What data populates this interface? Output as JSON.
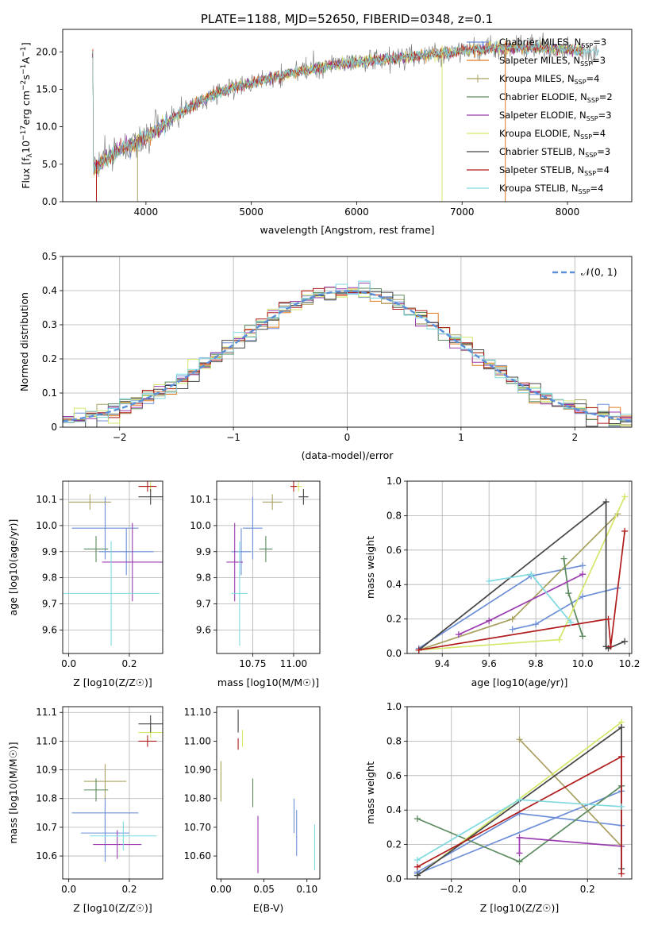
{
  "figure": {
    "title": "PLATE=1188, MJD=52650, FIBERID=0348, z=0.1"
  },
  "series": [
    {
      "label": "Chabrier MILES, N_SSP=3",
      "base": "Chabrier MILES, N",
      "sub": "SSP",
      "tail": "=3",
      "color": "#6c8fd8",
      "marker": "none"
    },
    {
      "label": "Salpeter MILES, N_SSP=3",
      "base": "Salpeter MILES, N",
      "sub": "SSP",
      "tail": "=3",
      "color": "#e07b1e",
      "marker": "none"
    },
    {
      "label": "Kroupa MILES, N_SSP=4",
      "base": "Kroupa MILES, N",
      "sub": "SSP",
      "tail": "=4",
      "color": "#a8a060",
      "marker": "plus"
    },
    {
      "label": "Chabrier ELODIE, N_SSP=2",
      "base": "Chabrier ELODIE, N",
      "sub": "SSP",
      "tail": "=2",
      "color": "#5a8a5e",
      "marker": "none"
    },
    {
      "label": "Salpeter ELODIE, N_SSP=3",
      "base": "Salpeter ELODIE, N",
      "sub": "SSP",
      "tail": "=3",
      "color": "#9b3bb0",
      "marker": "none"
    },
    {
      "label": "Kroupa ELODIE, N_SSP=4",
      "base": "Kroupa ELODIE, N",
      "sub": "SSP",
      "tail": "=4",
      "color": "#d5e66a",
      "marker": "none"
    },
    {
      "label": "Chabrier STELIB, N_SSP=3",
      "base": "Chabrier STELIB, N",
      "sub": "SSP",
      "tail": "=3",
      "color": "#444444",
      "marker": "none"
    },
    {
      "label": "Salpeter STELIB, N_SSP=4",
      "base": "Salpeter STELIB, N",
      "sub": "SSP",
      "tail": "=4",
      "color": "#b01c1c",
      "marker": "none"
    },
    {
      "label": "Kroupa STELIB, N_SSP=4",
      "base": "Kroupa STELIB, N",
      "sub": "SSP",
      "tail": "=4",
      "color": "#7fd9e0",
      "marker": "none"
    }
  ],
  "chart_data": [
    {
      "id": "spectrum",
      "type": "line",
      "xlabel": "wavelength [Angstrom, rest frame]",
      "ylabel": "Flux [f_λ 10^-17 erg cm^-2 s^-1 A^-1]",
      "xlim": [
        3210,
        8610
      ],
      "ylim": [
        0,
        23
      ],
      "xticks": [
        4000,
        5000,
        6000,
        7000,
        8000
      ],
      "yticks": [
        0,
        5,
        10,
        15,
        20
      ],
      "grid": false,
      "legend_position": "right",
      "observed_color": "#808080",
      "model_color": "#7fd9e0",
      "continuum": {
        "x": [
          3500,
          3600,
          3700,
          3800,
          3900,
          4000,
          4100,
          4200,
          4300,
          4400,
          4500,
          4600,
          4700,
          4800,
          5000,
          5200,
          5400,
          5600,
          5800,
          6000,
          6200,
          6400,
          6600,
          6800,
          7000,
          7200,
          7400,
          7600,
          7800,
          8000,
          8200,
          8300
        ],
        "y": [
          4.2,
          5.5,
          6.5,
          7.2,
          7.8,
          8.6,
          9.6,
          10.6,
          11.5,
          12.5,
          13.3,
          14.0,
          14.6,
          15.1,
          15.8,
          16.5,
          17.2,
          17.8,
          18.3,
          18.6,
          18.9,
          19.2,
          19.5,
          19.8,
          20.1,
          20.4,
          20.5,
          20.6,
          20.5,
          20.3,
          20.1,
          20.0
        ]
      },
      "spikes": [
        {
          "x": 3530,
          "y": 0
        },
        {
          "x": 3920,
          "y": 0
        },
        {
          "x": 6810,
          "y": 0
        },
        {
          "x": 7410,
          "y": 0
        }
      ]
    },
    {
      "id": "residuals",
      "type": "histogram",
      "xlabel": "(data-model)/error",
      "ylabel": "Normed distribution",
      "xlim": [
        -2.5,
        2.5
      ],
      "ylim": [
        0,
        0.5
      ],
      "xticks": [
        -2,
        -1,
        0,
        1,
        2
      ],
      "yticks": [
        0.0,
        0.1,
        0.2,
        0.3,
        0.4,
        0.5
      ],
      "grid": true,
      "reference_curve": {
        "label": "𝒩(0, 1)",
        "mean": 0,
        "sigma": 1,
        "color": "#5b8fd9",
        "style": "dashed"
      },
      "bin_width": 0.1,
      "bin_start": -2.5
    },
    {
      "id": "age_vs_Z",
      "type": "scatter",
      "xlabel": "Z [log10(Z/Z☉)]",
      "ylabel": "age [log10(age/yr)]",
      "xlim": [
        -0.02,
        0.31
      ],
      "ylim": [
        9.51,
        10.17
      ],
      "xticks": [
        0.0,
        0.2
      ],
      "yticks": [
        9.6,
        9.7,
        9.8,
        9.9,
        10.0,
        10.1
      ],
      "grid": true,
      "points": [
        {
          "series": 0,
          "x": 0.19,
          "y": 9.9,
          "xerr": 0.09,
          "yerr": 0.09
        },
        {
          "series": 1,
          "x": 0.12,
          "y": 9.99,
          "xerr": 0.11,
          "yerr": 0.12
        },
        {
          "series": 3,
          "x": 0.07,
          "y": 10.09,
          "xerr": 0.07,
          "yerr": 0.03
        },
        {
          "series": 4,
          "x": 0.09,
          "y": 9.91,
          "xerr": 0.04,
          "yerr": 0.05
        },
        {
          "series": 5,
          "x": 0.21,
          "y": 9.86,
          "xerr": 0.1,
          "yerr": 0.15
        },
        {
          "series": 6,
          "x": 0.27,
          "y": 10.15,
          "xerr": 0.02,
          "yerr": 0.02
        },
        {
          "series": 7,
          "x": 0.27,
          "y": 10.11,
          "xerr": 0.04,
          "yerr": 0.03
        },
        {
          "series": 8,
          "x": 0.26,
          "y": 10.15,
          "xerr": 0.03,
          "yerr": 0.02
        },
        {
          "series": 9,
          "x": 0.14,
          "y": 9.74,
          "xerr": 0.16,
          "yerr": 0.2
        }
      ]
    },
    {
      "id": "age_vs_mass",
      "type": "scatter",
      "xlabel": "mass [log10(M/M☉)]",
      "ylabel": "",
      "xlim": [
        10.53,
        11.16
      ],
      "ylim": [
        9.51,
        10.17
      ],
      "xticks": [
        10.75,
        11.0
      ],
      "yticks": [
        9.6,
        9.7,
        9.8,
        9.9,
        10.0,
        10.1
      ],
      "grid": true,
      "points": [
        {
          "series": 0,
          "x": 10.68,
          "y": 9.9,
          "xerr": 0.06,
          "yerr": 0.09
        },
        {
          "series": 1,
          "x": 10.75,
          "y": 9.99,
          "xerr": 0.06,
          "yerr": 0.12
        },
        {
          "series": 3,
          "x": 10.87,
          "y": 10.09,
          "xerr": 0.06,
          "yerr": 0.03
        },
        {
          "series": 4,
          "x": 10.83,
          "y": 9.91,
          "xerr": 0.04,
          "yerr": 0.05
        },
        {
          "series": 5,
          "x": 10.64,
          "y": 9.86,
          "xerr": 0.05,
          "yerr": 0.15
        },
        {
          "series": 6,
          "x": 11.03,
          "y": 10.15,
          "xerr": 0.02,
          "yerr": 0.02
        },
        {
          "series": 7,
          "x": 11.06,
          "y": 10.11,
          "xerr": 0.03,
          "yerr": 0.03
        },
        {
          "series": 8,
          "x": 11.0,
          "y": 10.15,
          "xerr": 0.02,
          "yerr": 0.02
        },
        {
          "series": 9,
          "x": 10.67,
          "y": 9.74,
          "xerr": 0.05,
          "yerr": 0.2
        }
      ]
    },
    {
      "id": "mass_weight_vs_age",
      "type": "line",
      "xlabel": "age [log10(age/yr)]",
      "ylabel": "mass weight",
      "xlim": [
        9.25,
        10.21
      ],
      "ylim": [
        0.0,
        1.0
      ],
      "xticks": [
        9.4,
        9.6,
        9.8,
        10.0,
        10.2
      ],
      "yticks": [
        0.0,
        0.2,
        0.4,
        0.6,
        0.8,
        1.0
      ],
      "grid": true,
      "lines": [
        {
          "series": 0,
          "x": [
            9.3,
            9.78,
            10.0
          ],
          "y": [
            0.03,
            0.45,
            0.51
          ]
        },
        {
          "series": 1,
          "x": [
            9.7,
            9.8,
            10.0,
            10.15
          ],
          "y": [
            0.14,
            0.17,
            0.33,
            0.38
          ]
        },
        {
          "series": 3,
          "x": [
            9.3,
            9.7,
            10.15
          ],
          "y": [
            0.02,
            0.2,
            0.81
          ]
        },
        {
          "series": 4,
          "x": [
            9.92,
            9.94,
            10.0
          ],
          "y": [
            0.55,
            0.35,
            0.1
          ]
        },
        {
          "series": 5,
          "x": [
            9.47,
            9.6,
            10.0
          ],
          "y": [
            0.11,
            0.19,
            0.46
          ]
        },
        {
          "series": 6,
          "x": [
            9.3,
            9.9,
            10.18
          ],
          "y": [
            0.02,
            0.08,
            0.91
          ]
        },
        {
          "series": 7,
          "x": [
            9.3,
            10.1,
            10.1,
            10.11,
            10.18
          ],
          "y": [
            0.02,
            0.88,
            0.04,
            0.03,
            0.07
          ]
        },
        {
          "series": 8,
          "x": [
            9.3,
            10.11,
            10.12,
            10.18
          ],
          "y": [
            0.02,
            0.2,
            0.04,
            0.71
          ]
        },
        {
          "series": 9,
          "x": [
            9.6,
            9.78,
            9.95
          ],
          "y": [
            0.42,
            0.46,
            0.18
          ]
        }
      ]
    },
    {
      "id": "mass_vs_Z",
      "type": "scatter",
      "xlabel": "Z [log10(Z/Z☉)]",
      "ylabel": "mass [log10(M/M☉)]",
      "xlim": [
        -0.02,
        0.31
      ],
      "ylim": [
        10.52,
        11.12
      ],
      "xticks": [
        0.0,
        0.2
      ],
      "yticks": [
        10.6,
        10.7,
        10.8,
        10.9,
        11.0,
        11.1
      ],
      "grid": true,
      "points": [
        {
          "series": 0,
          "x": 0.12,
          "y": 10.68,
          "xerr": 0.08,
          "yerr": 0.1
        },
        {
          "series": 1,
          "x": 0.12,
          "y": 10.75,
          "xerr": 0.11,
          "yerr": 0.06
        },
        {
          "series": 3,
          "x": 0.12,
          "y": 10.86,
          "xerr": 0.07,
          "yerr": 0.06
        },
        {
          "series": 4,
          "x": 0.09,
          "y": 10.83,
          "xerr": 0.04,
          "yerr": 0.04
        },
        {
          "series": 5,
          "x": 0.16,
          "y": 10.64,
          "xerr": 0.08,
          "yerr": 0.05
        },
        {
          "series": 6,
          "x": 0.27,
          "y": 11.03,
          "xerr": 0.04,
          "yerr": 0.02
        },
        {
          "series": 7,
          "x": 0.27,
          "y": 11.06,
          "xerr": 0.04,
          "yerr": 0.03
        },
        {
          "series": 8,
          "x": 0.26,
          "y": 11.0,
          "xerr": 0.03,
          "yerr": 0.02
        },
        {
          "series": 9,
          "x": 0.18,
          "y": 10.67,
          "xerr": 0.11,
          "yerr": 0.05
        }
      ]
    },
    {
      "id": "mass_vs_ebv",
      "type": "scatter",
      "xlabel": "E(B-V)",
      "ylabel": "",
      "xlim": [
        -0.005,
        0.115
      ],
      "ylim": [
        10.52,
        11.12
      ],
      "xticks": [
        0.0,
        0.05,
        0.1
      ],
      "yticks": [
        10.6,
        10.7,
        10.8,
        10.9,
        11.0,
        11.1
      ],
      "grid": false,
      "points": [
        {
          "series": 0,
          "x": 0.088,
          "y": 10.68,
          "xerr": 0.0,
          "yerr": 0.08
        },
        {
          "series": 1,
          "x": 0.085,
          "y": 10.74,
          "xerr": 0.0,
          "yerr": 0.06
        },
        {
          "series": 3,
          "x": 0.0,
          "y": 10.86,
          "xerr": 0.0,
          "yerr": 0.07
        },
        {
          "series": 4,
          "x": 0.037,
          "y": 10.82,
          "xerr": 0.0,
          "yerr": 0.05
        },
        {
          "series": 5,
          "x": 0.043,
          "y": 10.64,
          "xerr": 0.0,
          "yerr": 0.1
        },
        {
          "series": 6,
          "x": 0.025,
          "y": 11.01,
          "xerr": 0.0,
          "yerr": 0.03
        },
        {
          "series": 7,
          "x": 0.02,
          "y": 11.07,
          "xerr": 0.0,
          "yerr": 0.04
        },
        {
          "series": 8,
          "x": 0.02,
          "y": 10.99,
          "xerr": 0.0,
          "yerr": 0.02
        },
        {
          "series": 9,
          "x": 0.109,
          "y": 10.63,
          "xerr": 0.0,
          "yerr": 0.08
        }
      ]
    },
    {
      "id": "mass_weight_vs_Z",
      "type": "line",
      "xlabel": "Z [log10(Z/Z☉)]",
      "ylabel": "mass weight",
      "xlim": [
        -0.33,
        0.33
      ],
      "ylim": [
        0.0,
        1.0
      ],
      "xticks": [
        -0.2,
        0.0,
        0.2
      ],
      "yticks": [
        0.0,
        0.2,
        0.4,
        0.6,
        0.8,
        1.0
      ],
      "grid": true,
      "lines": [
        {
          "series": 0,
          "x": [
            -0.3,
            0.3,
            0.3
          ],
          "y": [
            0.03,
            0.51,
            0.54
          ]
        },
        {
          "series": 1,
          "x": [
            -0.3,
            0.0,
            0.3
          ],
          "y": [
            0.04,
            0.38,
            0.31
          ]
        },
        {
          "series": 3,
          "x": [
            0.0,
            0.3
          ],
          "y": [
            0.81,
            0.19
          ]
        },
        {
          "series": 4,
          "x": [
            -0.3,
            0.0,
            0.3
          ],
          "y": [
            0.35,
            0.1,
            0.54
          ]
        },
        {
          "series": 5,
          "x": [
            0.0,
            0.0,
            0.3
          ],
          "y": [
            0.15,
            0.24,
            0.19
          ]
        },
        {
          "series": 6,
          "x": [
            -0.3,
            0.3
          ],
          "y": [
            0.02,
            0.91
          ]
        },
        {
          "series": 7,
          "x": [
            -0.3,
            0.3,
            0.3
          ],
          "y": [
            0.02,
            0.88,
            0.06
          ]
        },
        {
          "series": 8,
          "x": [
            -0.3,
            0.3,
            0.3
          ],
          "y": [
            0.07,
            0.71,
            0.03
          ]
        },
        {
          "series": 9,
          "x": [
            -0.3,
            0.0,
            0.3
          ],
          "y": [
            0.11,
            0.46,
            0.42
          ]
        }
      ]
    }
  ]
}
